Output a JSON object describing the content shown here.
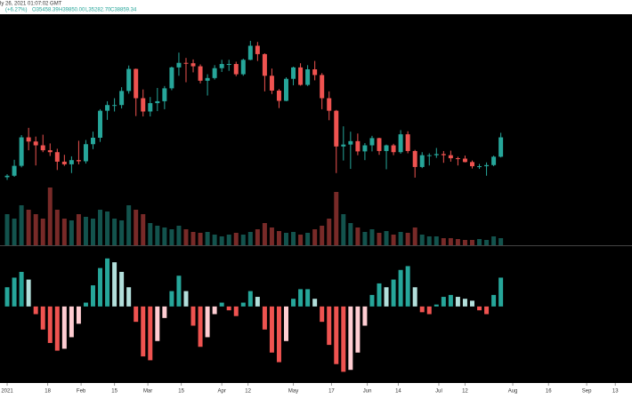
{
  "header": {
    "date": "ly 26, 2021 01:07:02 GMT",
    "change": "(+6.27%)",
    "ohlc": [
      "O35458.39",
      "H39850.00",
      "L35282.70",
      "C38859.34"
    ]
  },
  "chart_data": {
    "type": "candlestick",
    "up_color": "#26a69a",
    "down_color": "#ef5350",
    "xlim": [
      -3,
      262
    ],
    "xticks": [
      {
        "value": 0,
        "label": "2021"
      },
      {
        "value": 17,
        "label": "18"
      },
      {
        "value": 31,
        "label": "Feb"
      },
      {
        "value": 45,
        "label": "15"
      },
      {
        "value": 59,
        "label": "Mar"
      },
      {
        "value": 73,
        "label": "15"
      },
      {
        "value": 90,
        "label": "Apr"
      },
      {
        "value": 101,
        "label": "12"
      },
      {
        "value": 120,
        "label": "May"
      },
      {
        "value": 136,
        "label": "17"
      },
      {
        "value": 151,
        "label": "Jun"
      },
      {
        "value": 164,
        "label": "14"
      },
      {
        "value": 181,
        "label": "Jul"
      },
      {
        "value": 192,
        "label": "12"
      },
      {
        "value": 212,
        "label": "Aug"
      },
      {
        "value": 227,
        "label": "16"
      },
      {
        "value": 243,
        "label": "Sep"
      },
      {
        "value": 255,
        "label": "13"
      }
    ],
    "ylim": [
      11000,
      71800
    ],
    "candles": [
      [
        28900,
        29700,
        28200,
        29300
      ],
      [
        29300,
        33500,
        29000,
        31900
      ],
      [
        31900,
        40000,
        31500,
        39400
      ],
      [
        39400,
        41900,
        36000,
        38300
      ],
      [
        38300,
        39600,
        32000,
        37300
      ],
      [
        37300,
        40100,
        35500,
        36000
      ],
      [
        36000,
        37800,
        34500,
        35500
      ],
      [
        35500,
        36400,
        30800,
        33000
      ],
      [
        33000,
        34800,
        31900,
        32300
      ],
      [
        32300,
        34400,
        30000,
        33400
      ],
      [
        33400,
        38500,
        32300,
        33100
      ],
      [
        33100,
        38700,
        32500,
        37600
      ],
      [
        37600,
        40900,
        36300,
        39300
      ],
      [
        39300,
        46800,
        38200,
        46400
      ],
      [
        46400,
        48900,
        44000,
        47900
      ],
      [
        47900,
        49700,
        46200,
        47900
      ],
      [
        47900,
        52600,
        47000,
        51600
      ],
      [
        51600,
        58300,
        50900,
        57400
      ],
      [
        57400,
        57500,
        45000,
        49700
      ],
      [
        49700,
        52000,
        44900,
        46200
      ],
      [
        46200,
        50000,
        44900,
        48400
      ],
      [
        48400,
        52400,
        46300,
        48900
      ],
      [
        48900,
        52900,
        46800,
        52300
      ],
      [
        52300,
        58000,
        51800,
        57800
      ],
      [
        57800,
        61700,
        55600,
        59000
      ],
      [
        59000,
        60300,
        53900,
        58900
      ],
      [
        58900,
        59900,
        56500,
        58100
      ],
      [
        58100,
        58600,
        53600,
        54300
      ],
      [
        54300,
        56000,
        50400,
        55000
      ],
      [
        55000,
        58400,
        54600,
        57600
      ],
      [
        57600,
        59800,
        56600,
        58700
      ],
      [
        58700,
        59800,
        56900,
        58700
      ],
      [
        58700,
        59300,
        55500,
        56000
      ],
      [
        56000,
        60100,
        55600,
        59800
      ],
      [
        59800,
        64800,
        59700,
        63500
      ],
      [
        63500,
        64500,
        59500,
        61300
      ],
      [
        61300,
        61500,
        51500,
        55600
      ],
      [
        55600,
        57500,
        50800,
        51700
      ],
      [
        51700,
        52100,
        47100,
        49000
      ],
      [
        49000,
        55200,
        48900,
        54800
      ],
      [
        54800,
        58000,
        53100,
        57800
      ],
      [
        57800,
        58900,
        53000,
        53200
      ],
      [
        53200,
        58400,
        52900,
        57300
      ],
      [
        57300,
        59500,
        54400,
        55800
      ],
      [
        55800,
        56300,
        46800,
        49700
      ],
      [
        49700,
        51500,
        43900,
        46400
      ],
      [
        46400,
        46600,
        30000,
        37000
      ],
      [
        37000,
        42300,
        33300,
        37500
      ],
      [
        37500,
        40900,
        31100,
        38400
      ],
      [
        38400,
        40400,
        34700,
        35700
      ],
      [
        35700,
        37900,
        33400,
        37300
      ],
      [
        37300,
        39800,
        35700,
        39200
      ],
      [
        39200,
        39300,
        34800,
        35800
      ],
      [
        35800,
        37500,
        31000,
        37300
      ],
      [
        37300,
        37700,
        34700,
        35500
      ],
      [
        35500,
        41300,
        35100,
        40200
      ],
      [
        40200,
        41000,
        35200,
        35800
      ],
      [
        35800,
        36100,
        28800,
        31600
      ],
      [
        31600,
        35500,
        31300,
        34700
      ],
      [
        34700,
        35200,
        32000,
        34700
      ],
      [
        34700,
        36600,
        34000,
        35000
      ],
      [
        35000,
        35800,
        32700,
        34700
      ],
      [
        34700,
        35900,
        33000,
        33900
      ],
      [
        33900,
        34300,
        32000,
        33800
      ],
      [
        33800,
        34600,
        32800,
        32900
      ],
      [
        32900,
        33300,
        31200,
        31800
      ],
      [
        31800,
        32400,
        31100,
        31800
      ],
      [
        31800,
        32800,
        29300,
        32100
      ],
      [
        32100,
        34600,
        31800,
        34300
      ],
      [
        34300,
        40600,
        34100,
        39400
      ]
    ],
    "volume": {
      "ylim": [
        0,
        260
      ],
      "values": [
        35,
        30,
        45,
        40,
        35,
        30,
        65,
        40,
        30,
        28,
        35,
        32,
        30,
        40,
        38,
        30,
        28,
        45,
        40,
        35,
        25,
        22,
        20,
        18,
        22,
        18,
        15,
        14,
        15,
        12,
        10,
        12,
        14,
        12,
        15,
        18,
        25,
        20,
        16,
        14,
        15,
        12,
        14,
        18,
        22,
        30,
        60,
        35,
        25,
        20,
        15,
        18,
        14,
        16,
        12,
        15,
        14,
        20,
        12,
        10,
        10,
        8,
        8,
        7,
        6,
        6,
        7,
        6,
        10,
        8
      ]
    },
    "histogram": {
      "ylim": [
        -2200,
        1500
      ],
      "colors": {
        "up_rising": "#26a69a",
        "up_falling": "#b2dfdb",
        "down_falling": "#ef5350",
        "down_rising": "#ffcdd2"
      },
      "values": [
        500,
        750,
        900,
        700,
        -200,
        -600,
        -950,
        -1150,
        -1100,
        -800,
        -450,
        100,
        550,
        1000,
        1250,
        1150,
        900,
        500,
        -400,
        -1300,
        -1400,
        -900,
        -300,
        400,
        800,
        400,
        -500,
        -1050,
        -800,
        -200,
        100,
        -100,
        -250,
        100,
        400,
        250,
        -600,
        -1200,
        -1450,
        -900,
        200,
        450,
        450,
        200,
        -400,
        -1000,
        -1500,
        -1700,
        -1650,
        -1200,
        -500,
        300,
        600,
        500,
        700,
        950,
        1050,
        500,
        -150,
        -200,
        50,
        250,
        300,
        250,
        200,
        150,
        -100,
        -200,
        300,
        750
      ]
    }
  }
}
